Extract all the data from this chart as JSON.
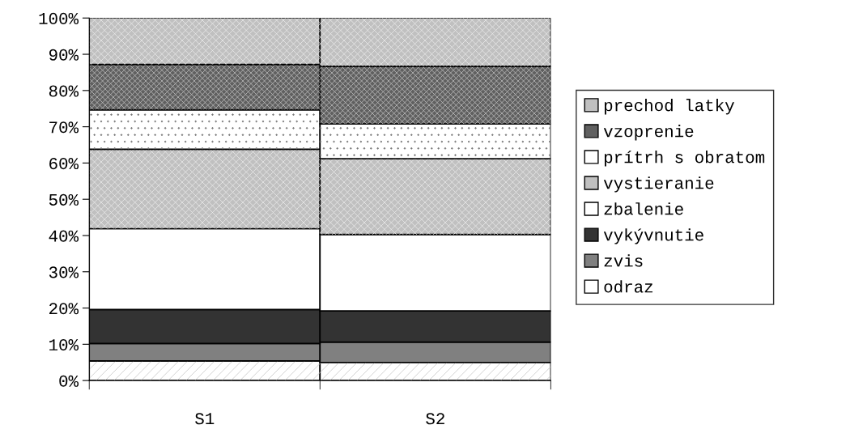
{
  "chart_data": {
    "type": "bar",
    "stacked": true,
    "categories": [
      "S1",
      "S2"
    ],
    "series": [
      {
        "name": "odraz",
        "color": "#ffffff",
        "values": [
          5.4,
          5.0
        ]
      },
      {
        "name": "zvis",
        "color": "#808080",
        "values": [
          4.8,
          5.6
        ]
      },
      {
        "name": "vykývnutie",
        "color": "#333333",
        "values": [
          9.4,
          8.6
        ]
      },
      {
        "name": "zbalenie",
        "color": "#ffffff",
        "values": [
          22.3,
          21.1
        ]
      },
      {
        "name": "vystieranie",
        "color": "#c0c0c0",
        "values": [
          21.9,
          20.9
        ]
      },
      {
        "name": "prítrh s obratom",
        "color": "#ffffff",
        "values": [
          10.9,
          9.6
        ]
      },
      {
        "name": "vzoprenie",
        "color": "#606060",
        "values": [
          12.5,
          15.9
        ]
      },
      {
        "name": "prechod latky",
        "color": "#c0c0c0",
        "values": [
          12.8,
          13.3
        ]
      }
    ],
    "ylim": [
      0,
      100
    ],
    "yticks": [
      {
        "value": 0,
        "label": "0%"
      },
      {
        "value": 10,
        "label": "10%"
      },
      {
        "value": 20,
        "label": "20%"
      },
      {
        "value": 30,
        "label": "30%"
      },
      {
        "value": 40,
        "label": "40%"
      },
      {
        "value": 50,
        "label": "50%"
      },
      {
        "value": 60,
        "label": "60%"
      },
      {
        "value": 70,
        "label": "70%"
      },
      {
        "value": 80,
        "label": "80%"
      },
      {
        "value": 90,
        "label": "90%"
      },
      {
        "value": 100,
        "label": "100%"
      }
    ],
    "grid": false,
    "legend": "right"
  }
}
